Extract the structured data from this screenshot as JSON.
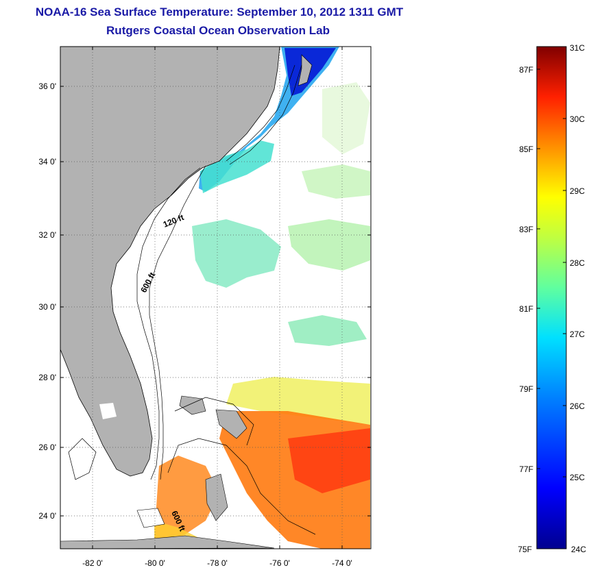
{
  "title": "NOAA-16 Sea Surface Temperature:  September 10, 2012 1311 GMT",
  "subtitle": "Rutgers Coastal Ocean Observation Lab",
  "map": {
    "lon_ticks": [
      "-82 0'",
      "-80 0'",
      "-78 0'",
      "-76 0'",
      "-74 0'"
    ],
    "lat_ticks": [
      "36 0'",
      "34 0'",
      "32 0'",
      "30 0'",
      "28 0'",
      "26 0'",
      "24 0'"
    ],
    "contour_labels": [
      "120 ft",
      "600 ft",
      "600 ft"
    ],
    "land_color": "#b2b2b2",
    "ocean_color": "#ffffff"
  },
  "colorbar": {
    "celsius_labels": [
      "31C",
      "30C",
      "29C",
      "28C",
      "27C",
      "26C",
      "25C",
      "24C"
    ],
    "fahrenheit_labels": [
      "87F",
      "85F",
      "83F",
      "81F",
      "79F",
      "77F",
      "75F"
    ],
    "colors": [
      "#00008f",
      "#0000ff",
      "#0080ff",
      "#00ffff",
      "#80ff80",
      "#ffff00",
      "#ff8000",
      "#ff0000",
      "#800000"
    ]
  }
}
